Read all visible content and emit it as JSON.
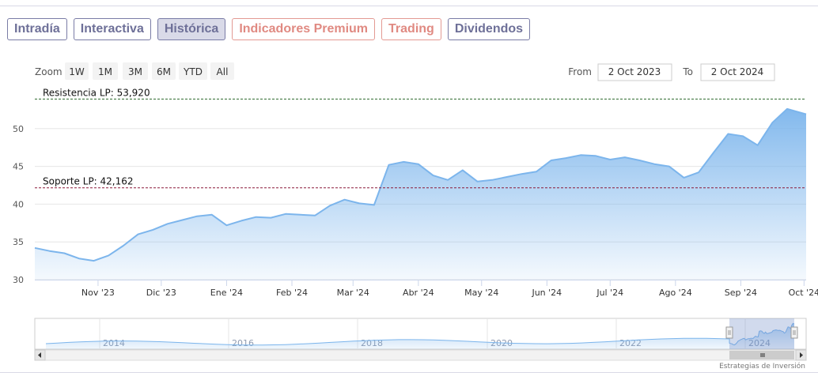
{
  "tabs": [
    {
      "label": "Intradía",
      "style": "normal"
    },
    {
      "label": "Interactiva",
      "style": "normal"
    },
    {
      "label": "Histórica",
      "style": "active"
    },
    {
      "label": "Indicadores Premium",
      "style": "premium"
    },
    {
      "label": "Trading",
      "style": "premium"
    },
    {
      "label": "Dividendos",
      "style": "normal"
    }
  ],
  "range_selector": {
    "zoom_label": "Zoom",
    "buttons": [
      "1W",
      "1M",
      "3M",
      "6M",
      "YTD",
      "All"
    ],
    "from_label": "From",
    "from_value": "2 Oct 2023",
    "to_label": "To",
    "to_value": "2 Oct 2024"
  },
  "credits": "Estrategias de Inversión",
  "colors": {
    "line": "#7cb5ec",
    "area_top": "#7cb5ec",
    "resistance": "#2d6a2d",
    "support": "#8b1a3a",
    "tab_border": "#7a7ca6",
    "tab_premium": "#e08a82",
    "tab_active_bg": "#d9dae8"
  },
  "chart_data": {
    "type": "area",
    "x": [
      "2023-10-02",
      "2023-10-09",
      "2023-10-16",
      "2023-10-23",
      "2023-10-30",
      "2023-11-06",
      "2023-11-13",
      "2023-11-20",
      "2023-11-27",
      "2023-12-04",
      "2023-12-11",
      "2023-12-18",
      "2023-12-25",
      "2024-01-01",
      "2024-01-08",
      "2024-01-15",
      "2024-01-22",
      "2024-01-29",
      "2024-02-05",
      "2024-02-12",
      "2024-02-19",
      "2024-02-26",
      "2024-03-04",
      "2024-03-11",
      "2024-03-18",
      "2024-03-25",
      "2024-04-01",
      "2024-04-08",
      "2024-04-15",
      "2024-04-22",
      "2024-04-29",
      "2024-05-06",
      "2024-05-13",
      "2024-05-20",
      "2024-05-27",
      "2024-06-03",
      "2024-06-10",
      "2024-06-17",
      "2024-06-24",
      "2024-07-01",
      "2024-07-08",
      "2024-07-15",
      "2024-07-22",
      "2024-07-29",
      "2024-08-05",
      "2024-08-12",
      "2024-08-19",
      "2024-08-26",
      "2024-09-02",
      "2024-09-09",
      "2024-09-16",
      "2024-09-23",
      "2024-10-02"
    ],
    "series": [
      {
        "values": [
          34.2,
          33.8,
          33.5,
          32.8,
          32.5,
          33.2,
          34.5,
          36.0,
          36.6,
          37.4,
          37.9,
          38.4,
          38.6,
          37.2,
          37.8,
          38.3,
          38.2,
          38.7,
          38.6,
          38.5,
          39.8,
          40.6,
          40.1,
          39.9,
          45.2,
          45.6,
          45.3,
          43.8,
          43.2,
          44.5,
          43.0,
          43.2,
          43.6,
          44.0,
          44.3,
          45.8,
          46.1,
          46.5,
          46.4,
          45.9,
          46.2,
          45.8,
          45.3,
          45.0,
          43.5,
          44.2,
          46.8,
          49.3,
          49.0,
          47.8,
          50.8,
          52.6,
          51.9
        ]
      }
    ],
    "xtick_labels": [
      "Nov '23",
      "Dic '23",
      "Ene '24",
      "Feb '24",
      "Mar '24",
      "Abr '24",
      "May '24",
      "Jun '24",
      "Jul '24",
      "Ago '24",
      "Sep '24",
      "Oct '24"
    ],
    "xtick_dates": [
      "2023-11-01",
      "2023-12-01",
      "2024-01-01",
      "2024-02-01",
      "2024-03-01",
      "2024-04-01",
      "2024-05-01",
      "2024-06-01",
      "2024-07-01",
      "2024-08-01",
      "2024-09-01",
      "2024-10-01"
    ],
    "ytick_labels": [
      "30",
      "35",
      "40",
      "45",
      "50"
    ],
    "ylim": [
      30,
      55
    ],
    "grid": true,
    "annotations": [
      {
        "label": "Resistencia LP: 53,920",
        "value": 53.92,
        "style": "dashed",
        "color": "#2d6a2d"
      },
      {
        "label": "Soporte LP: 42,162",
        "value": 42.162,
        "style": "dashed",
        "color": "#8b1a3a"
      }
    ],
    "navigator": {
      "tick_labels": [
        "2014",
        "2016",
        "2018",
        "2020",
        "2022",
        "2024"
      ]
    }
  }
}
